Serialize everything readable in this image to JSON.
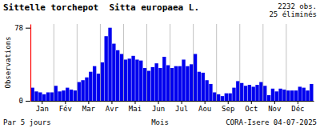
{
  "chart_data": {
    "type": "bar",
    "title": "Sittelle torchepot  Sitta europaea L.",
    "annotations": [
      "2232 obs.\n25 éliminés",
      "Par 5 jours",
      "CORA-Isere 04-07-2025"
    ],
    "xlabel": "Mois",
    "ylabel": "Observations",
    "color": "#0000ee",
    "categories": [
      null,
      null,
      "Jan",
      null,
      null,
      null,
      null,
      null,
      "Fév",
      null,
      null,
      null,
      null,
      null,
      "Mar",
      null,
      null,
      null,
      null,
      null,
      "Avr",
      null,
      null,
      null,
      null,
      null,
      "Mai",
      null,
      null,
      null,
      null,
      null,
      "Jun",
      null,
      null,
      null,
      null,
      null,
      "Jul",
      null,
      null,
      null,
      null,
      null,
      "Aou",
      null,
      null,
      null,
      null,
      null,
      "Sep",
      null,
      null,
      null,
      null,
      null,
      "Oct",
      null,
      null,
      null,
      null,
      null,
      "Nov",
      null,
      null,
      null,
      null,
      null,
      "Déc",
      null,
      null,
      null,
      null
    ],
    "values": [
      14,
      10,
      9,
      7,
      9,
      9,
      16,
      10,
      11,
      14,
      12,
      11,
      20,
      22,
      25,
      31,
      37,
      29,
      41,
      69,
      78,
      61,
      54,
      50,
      44,
      45,
      48,
      44,
      43,
      35,
      32,
      36,
      40,
      35,
      47,
      38,
      35,
      37,
      37,
      44,
      37,
      39,
      50,
      31,
      30,
      22,
      18,
      9,
      7,
      5,
      8,
      8,
      14,
      21,
      19,
      16,
      17,
      15,
      17,
      20,
      16,
      6,
      13,
      10,
      13,
      12,
      11,
      11,
      11,
      15,
      14,
      11,
      18
    ],
    "ylim": [
      0,
      82
    ],
    "yticks": [
      0,
      78
    ],
    "grid": false
  }
}
